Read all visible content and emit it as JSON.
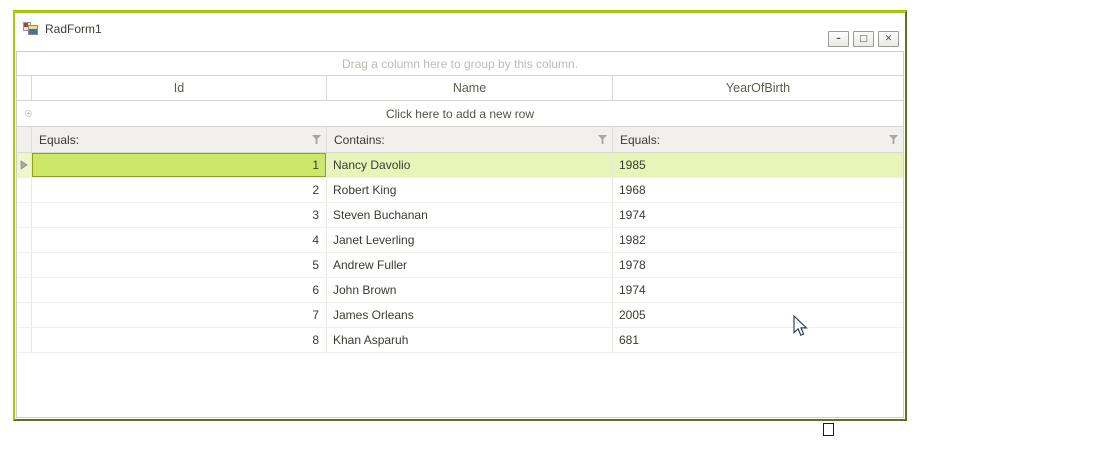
{
  "window": {
    "title": "RadForm1",
    "controls": {
      "minimize_glyph": "–",
      "maximize_glyph": "□",
      "close_glyph": "✕"
    }
  },
  "grid": {
    "group_panel_text": "Drag a column here to group by this column.",
    "add_new_row_text": "Click here to add a new row",
    "columns": [
      {
        "key": "id",
        "label": "Id",
        "filter_operator": "Equals:"
      },
      {
        "key": "name",
        "label": "Name",
        "filter_operator": "Contains:"
      },
      {
        "key": "year",
        "label": "YearOfBirth",
        "filter_operator": "Equals:"
      }
    ],
    "rows": [
      {
        "id": "1",
        "name": "Nancy Davolio",
        "year": "1985",
        "selected": true
      },
      {
        "id": "2",
        "name": "Robert King",
        "year": "1968",
        "selected": false
      },
      {
        "id": "3",
        "name": "Steven Buchanan",
        "year": "1974",
        "selected": false
      },
      {
        "id": "4",
        "name": "Janet Leverling",
        "year": "1982",
        "selected": false
      },
      {
        "id": "5",
        "name": "Andrew Fuller",
        "year": "1978",
        "selected": false
      },
      {
        "id": "6",
        "name": "John Brown",
        "year": "1974",
        "selected": false
      },
      {
        "id": "7",
        "name": "James Orleans",
        "year": "2005",
        "selected": false
      },
      {
        "id": "8",
        "name": "Khan Asparuh",
        "year": "681",
        "selected": false
      }
    ]
  },
  "colors": {
    "form_border_top_left": "#a3cb0e",
    "form_border_bottom_right": "#616f1e",
    "selected_row": "#e9f4b8",
    "current_cell": "#cde869",
    "current_cell_border": "#8da021",
    "filter_row_bg": "#f1f0ec"
  }
}
